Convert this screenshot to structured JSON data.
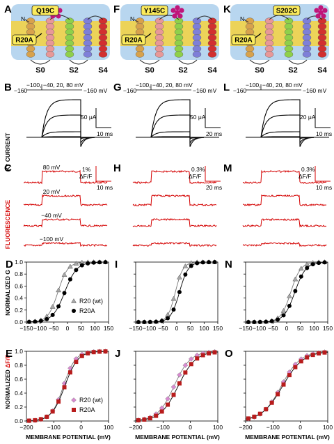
{
  "columns": [
    {
      "labels": {
        "top": "A",
        "current": "B",
        "fluor": "C",
        "g": "D",
        "f": "E"
      },
      "mutation": "Q19C",
      "r20a": "R20A",
      "segments": [
        "S0",
        "S2",
        "S4"
      ],
      "protocol": {
        "top": "−100, −40, 20, 80 mV",
        "hold": "−160",
        "tail": "−160 mV"
      },
      "current_scale": {
        "amp": "50 μA",
        "time": "10 ms"
      },
      "fluor_scale": {
        "pct": "1%",
        "unit": "ΔF/F",
        "time": "10 ms"
      },
      "trace_labels": [
        "80 mV",
        "20 mV",
        "−40 mV",
        "−100 mV"
      ],
      "g_ticks_x": [
        "−150",
        "−100",
        "−50",
        "0",
        "50",
        "100",
        "150"
      ],
      "f_ticks_x": [
        "−200",
        "−100",
        "0",
        "100"
      ],
      "y_ticks": [
        "0.0",
        "0.2",
        "0.4",
        "0.6",
        "0.8",
        "1.0"
      ]
    },
    {
      "labels": {
        "top": "F",
        "current": "G",
        "fluor": "H",
        "g": "I",
        "f": "J"
      },
      "mutation": "Y145C",
      "r20a": "R20A",
      "segments": [
        "S0",
        "S2",
        "S4"
      ],
      "protocol": {
        "top": "−100, −40, 20, 80 mV",
        "hold": "−160",
        "tail": "−160 mV"
      },
      "current_scale": {
        "amp": "50 μA",
        "time": "20 ms"
      },
      "fluor_scale": {
        "pct": "0.3%",
        "unit": "ΔF/F",
        "time": "20 ms"
      },
      "trace_labels": [
        "",
        "",
        "",
        ""
      ],
      "g_ticks_x": [
        "−150",
        "−100",
        "−50",
        "0",
        "50",
        "100",
        "150"
      ],
      "f_ticks_x": [
        "−200",
        "−100",
        "0",
        "100"
      ],
      "y_ticks": [
        "",
        "",
        "",
        "",
        "",
        ""
      ]
    },
    {
      "labels": {
        "top": "K",
        "current": "L",
        "fluor": "M",
        "g": "N",
        "f": "O"
      },
      "mutation": "S202C",
      "r20a": "R20A",
      "segments": [
        "S0",
        "S2",
        "S4"
      ],
      "protocol": {
        "top": "−100, −40, 20, 80 mV",
        "hold": "−160",
        "tail": "−160 mV"
      },
      "current_scale": {
        "amp": "20 μA",
        "time": "10 ms"
      },
      "fluor_scale": {
        "pct": "0.3%",
        "unit": "ΔF/F",
        "time": "10 ms"
      },
      "trace_labels": [
        "",
        "",
        "",
        ""
      ],
      "g_ticks_x": [
        "−150",
        "−100",
        "−50",
        "0",
        "50",
        "100",
        "150"
      ],
      "f_ticks_x": [
        "−200",
        "−100",
        "0",
        "100"
      ],
      "y_ticks": [
        "",
        "",
        "",
        "",
        "",
        ""
      ]
    }
  ],
  "side_labels": {
    "current": "K⁺ CURRENT",
    "fluor": "FLUORESCENCE",
    "g": "NORMALIZED G",
    "f_prefix": "NORMALIZED ",
    "f_suffix": "ΔF/F"
  },
  "legend_g": {
    "wt": "R20 (wt)",
    "mut": "R20A"
  },
  "legend_f": {
    "wt": "R20 (wt)",
    "mut": "R20A"
  },
  "x_title": "MEMBRANE POTENTIAL (mV)",
  "colors": {
    "membrane": "#f4d23e",
    "water": "#b8d6ef",
    "fluor": "#d40000",
    "dye": "#c0157a",
    "mutfill": "#fbeb5c",
    "wt_g": "#a8a8a8",
    "mut_g": "#000000",
    "wt_f": "#d88ad0",
    "mut_f": "#b81c1c"
  },
  "chart_data": [
    {
      "type": "scatter",
      "panel": "D",
      "xlim": [
        -150,
        150
      ],
      "ylim": [
        0,
        1
      ],
      "series": [
        {
          "name": "R20 (wt)",
          "v_half": -35,
          "slope": 18
        },
        {
          "name": "R20A",
          "v_half": -10,
          "slope": 22
        }
      ]
    },
    {
      "type": "scatter",
      "panel": "E",
      "xlim": [
        -200,
        100
      ],
      "ylim": [
        0,
        1
      ],
      "series": [
        {
          "name": "R20 (wt)",
          "v_half": -65,
          "slope": 22
        },
        {
          "name": "R20A",
          "v_half": -60,
          "slope": 24
        }
      ]
    },
    {
      "type": "scatter",
      "panel": "I",
      "xlim": [
        -150,
        150
      ],
      "ylim": [
        0,
        1
      ],
      "series": [
        {
          "name": "R20 (wt)",
          "v_half": -5,
          "slope": 14
        },
        {
          "name": "R20A",
          "v_half": 10,
          "slope": 16
        }
      ]
    },
    {
      "type": "scatter",
      "panel": "J",
      "xlim": [
        -200,
        100
      ],
      "ylim": [
        0,
        1
      ],
      "series": [
        {
          "name": "R20 (wt)",
          "v_half": -60,
          "slope": 30
        },
        {
          "name": "R20A",
          "v_half": -45,
          "slope": 32
        }
      ]
    },
    {
      "type": "scatter",
      "panel": "N",
      "xlim": [
        -150,
        150
      ],
      "ylim": [
        0,
        1
      ],
      "series": [
        {
          "name": "R20 (wt)",
          "v_half": 15,
          "slope": 18
        },
        {
          "name": "R20A",
          "v_half": 30,
          "slope": 20
        }
      ]
    },
    {
      "type": "scatter",
      "panel": "O",
      "xlim": [
        -200,
        100
      ],
      "ylim": [
        0,
        1
      ],
      "series": [
        {
          "name": "R20 (wt)",
          "v_half": -70,
          "slope": 35
        },
        {
          "name": "R20A",
          "v_half": -65,
          "slope": 38
        }
      ]
    }
  ]
}
